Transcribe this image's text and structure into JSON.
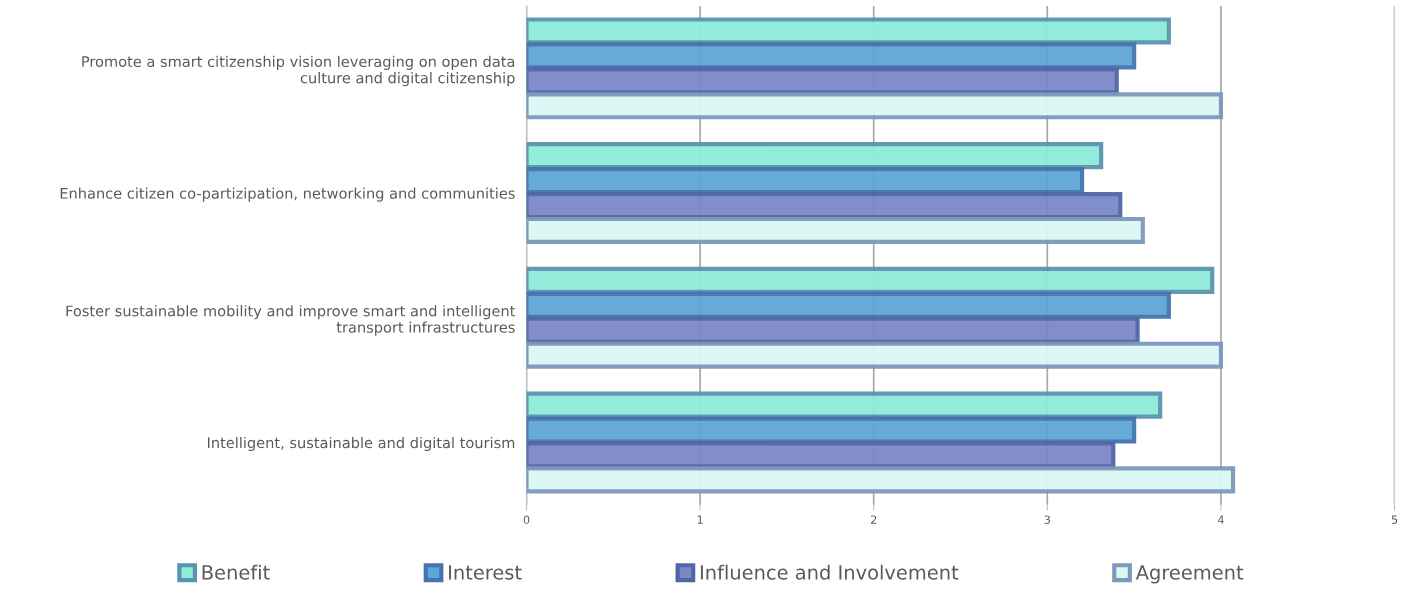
{
  "chart_data": {
    "type": "bar",
    "orientation": "horizontal",
    "categories": [
      "Promote a smart citizenship vision leveraging on open data\nculture and digital citizenship",
      "Enhance citizen co-partizipation, networking and communities",
      "Foster sustainable mobility and improve smart and intelligent\ntransport infrastructures",
      "Intelligent, sustainable and digital tourism"
    ],
    "series": [
      {
        "name": "Benefit",
        "color": "#8eecd8",
        "values": [
          3.7,
          3.31,
          3.95,
          3.65
        ]
      },
      {
        "name": "Interest",
        "color": "#5ea6d6",
        "values": [
          3.5,
          3.2,
          3.7,
          3.5
        ]
      },
      {
        "name": "Influence and Involvement",
        "color": "#7b88c8",
        "values": [
          3.4,
          3.42,
          3.52,
          3.38
        ]
      },
      {
        "name": "Agreement",
        "color": "#dcf8f4",
        "values": [
          4.0,
          3.55,
          4.0,
          4.07
        ]
      }
    ],
    "xlim": [
      0,
      5
    ],
    "xticks": [
      0,
      1,
      2,
      3,
      4,
      5
    ],
    "grid": "x",
    "legend": "bottom"
  }
}
